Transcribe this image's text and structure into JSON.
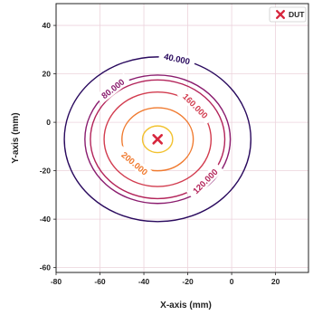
{
  "chart_data": {
    "type": "contour",
    "title": "",
    "xlabel": "X-axis (mm)",
    "ylabel": "Y-axis (mm)",
    "xlim": [
      -60,
      32
    ],
    "ylim": [
      -62,
      49
    ],
    "xticks": [
      -80,
      -60,
      -40,
      -20,
      0,
      20
    ],
    "yticks": [
      40,
      20,
      0,
      -20,
      -40,
      -60
    ],
    "grid": true,
    "legend": {
      "position": "top-right",
      "entries": [
        {
          "label": "DUT",
          "marker": "x",
          "color": "#d7263d"
        }
      ]
    },
    "dut_point": {
      "x": -23,
      "y": -7
    },
    "contours": [
      {
        "level": 40000,
        "label": "40.000",
        "radius": 34,
        "color": "#2a0a5e",
        "label_angle": 78
      },
      {
        "level": 80000,
        "label": "80.000",
        "radius": 26.5,
        "color": "#8a1c6e",
        "label_angle": 128
      },
      {
        "level": 120000,
        "label": "120.000",
        "radius": 24.5,
        "color": "#b3245a",
        "label_angle": -45
      },
      {
        "level": 160000,
        "label": "160.000",
        "radius": 19.5,
        "color": "#d23c4f",
        "label_angle": 45
      },
      {
        "level": 200000,
        "label": "200.000",
        "radius": 13,
        "color": "#f07a2f",
        "label_angle": -130
      },
      {
        "level": 240000,
        "label": "",
        "radius": 5.5,
        "color": "#f2c230",
        "label_angle": 0
      }
    ]
  }
}
